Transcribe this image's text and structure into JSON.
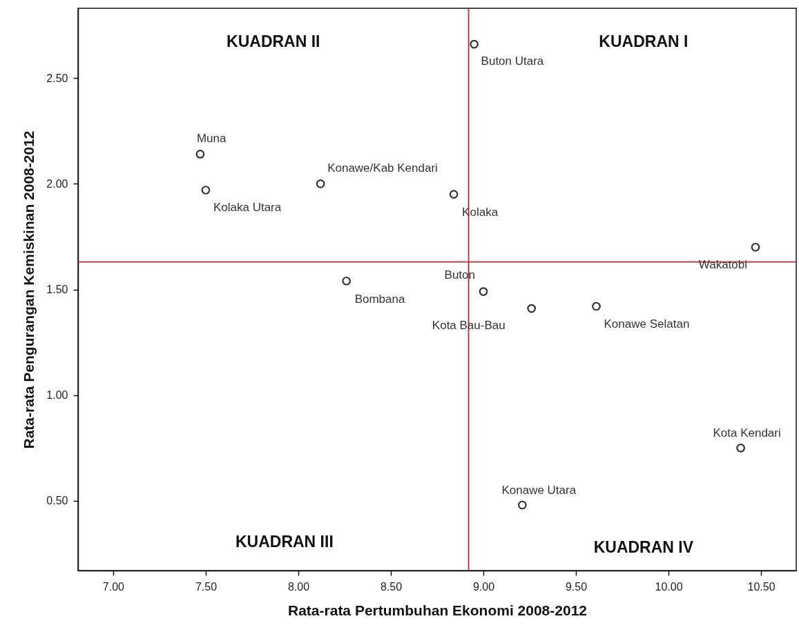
{
  "chart_data": {
    "type": "scatter",
    "xlabel": "Rata-rata Pertumbuhan Ekonomi 2008-2012",
    "ylabel": "Rata-rata Pengurangan Kemiskinan 2008-2012",
    "x": [
      8.95,
      7.47,
      7.5,
      8.12,
      8.84,
      10.47,
      8.26,
      9.0,
      9.26,
      9.61,
      10.39,
      9.21
    ],
    "series": [
      {
        "color": "#333333",
        "values": [
          2.66,
          2.14,
          1.97,
          2.0,
          1.95,
          1.7,
          1.54,
          1.49,
          1.41,
          1.42,
          0.75,
          0.48
        ]
      }
    ],
    "marker": "circle",
    "xlim": [
      6.81,
      10.69
    ],
    "ylim": [
      0.17,
      2.83
    ],
    "xticks": [
      {
        "value": 7,
        "label": "7.00"
      },
      {
        "value": 7.5,
        "label": "7.50"
      },
      {
        "value": 8,
        "label": "8.00"
      },
      {
        "value": 8.5,
        "label": "8.50"
      },
      {
        "value": 9,
        "label": "9.00"
      },
      {
        "value": 9.5,
        "label": "9.50"
      },
      {
        "value": 10,
        "label": "10.00"
      },
      {
        "value": 10.5,
        "label": "10.50"
      }
    ],
    "yticks": [
      {
        "value": 0.5,
        "label": "0.50"
      },
      {
        "value": 1,
        "label": "1.00"
      },
      {
        "value": 1.5,
        "label": "1.50"
      },
      {
        "value": 2,
        "label": "2.00"
      },
      {
        "value": 2.5,
        "label": "2.50"
      }
    ],
    "ref_lines": [
      {
        "axis": "x",
        "value": 8.92,
        "color": "#c0282d"
      },
      {
        "axis": "y",
        "value": 1.63,
        "color": "#c0282d"
      }
    ],
    "annotations": [
      "KUADRAN I",
      "KUADRAN II",
      "KUADRAN III",
      "KUADRAN IV",
      {
        "text": "Buton Utara",
        "x": 8.95,
        "y": 2.66
      },
      {
        "text": "Muna",
        "x": 7.47,
        "y": 2.14
      },
      {
        "text": "Kolaka Utara",
        "x": 7.5,
        "y": 1.97
      },
      {
        "text": "Konawe/Kab Kendari",
        "x": 8.12,
        "y": 2.0
      },
      {
        "text": "Kolaka",
        "x": 8.84,
        "y": 1.95
      },
      {
        "text": "Wakatobi",
        "x": 10.47,
        "y": 1.7
      },
      {
        "text": "Bombana",
        "x": 8.26,
        "y": 1.54
      },
      {
        "text": "Buton",
        "x": 9.0,
        "y": 1.49
      },
      {
        "text": "Kota Bau-Bau",
        "x": 9.26,
        "y": 1.41
      },
      {
        "text": "Konawe Selatan",
        "x": 9.61,
        "y": 1.42
      },
      {
        "text": "Kota Kendari",
        "x": 10.39,
        "y": 0.75
      },
      {
        "text": "Konawe Utara",
        "x": 9.21,
        "y": 0.48
      }
    ]
  }
}
